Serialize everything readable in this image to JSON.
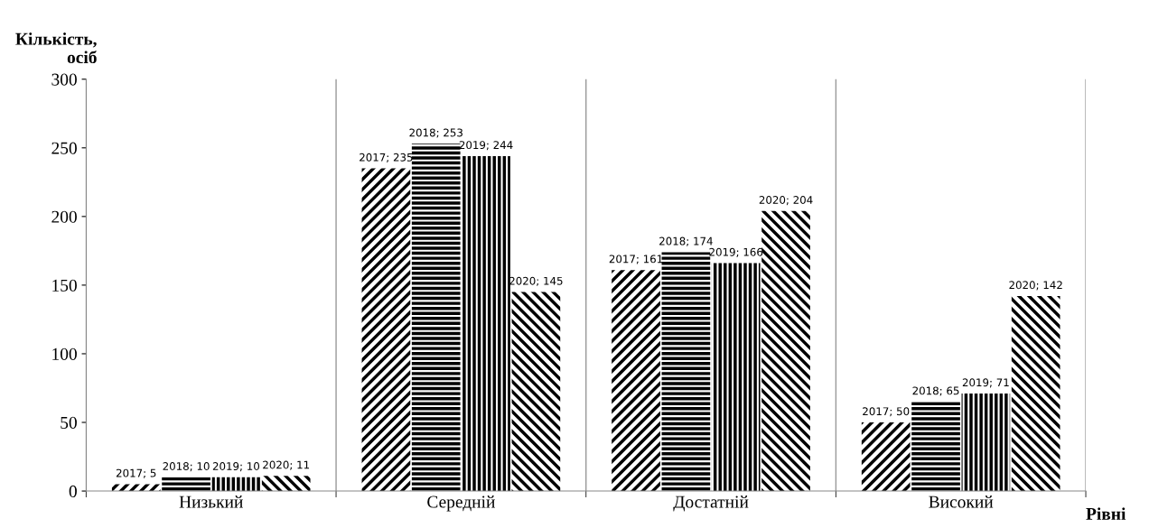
{
  "chart_data": {
    "type": "bar",
    "xlabel": "Рівні",
    "ylabel": "Кількість,\nосіб",
    "categories": [
      "Низький",
      "Середній",
      "Достатній",
      "Високий"
    ],
    "series": [
      {
        "color": "#000000",
        "values": [
          5,
          235,
          161,
          50
        ],
        "value_labels": [
          "2017; 5",
          "2017; 235",
          "2017; 161",
          "2017; 50"
        ]
      },
      {
        "color": "#000000",
        "values": [
          10,
          253,
          174,
          65
        ],
        "value_labels": [
          "2018; 10",
          "2018; 253",
          "2018; 174",
          "2018; 65"
        ]
      },
      {
        "color": "#000000",
        "values": [
          10,
          244,
          166,
          71
        ],
        "value_labels": [
          "2019; 10",
          "2019; 244",
          "2019; 166",
          "2019; 71"
        ]
      },
      {
        "color": "#000000",
        "values": [
          11,
          145,
          204,
          142
        ],
        "value_labels": [
          "2020; 11",
          "2020; 145",
          "2020; 204",
          "2020; 142"
        ]
      }
    ],
    "ylim": [
      0,
      300
    ],
    "yticks": [
      0,
      50,
      100,
      150,
      200,
      250,
      300
    ],
    "grid": "x",
    "legend": false
  }
}
